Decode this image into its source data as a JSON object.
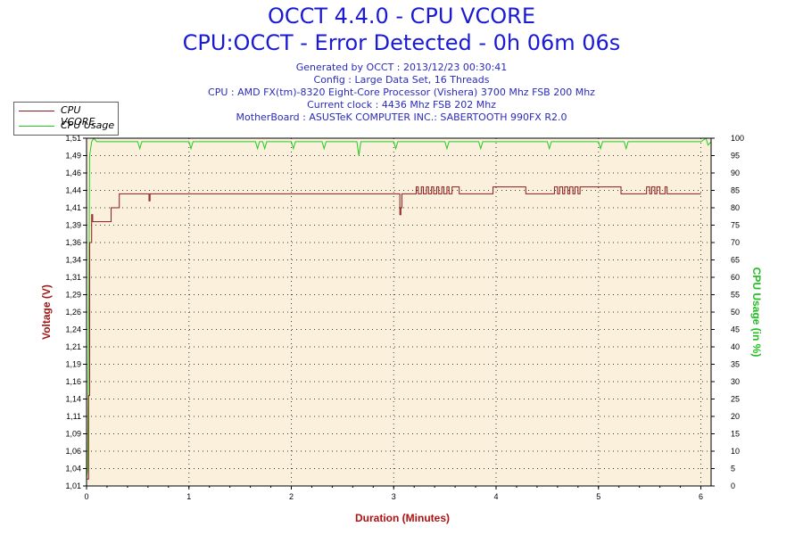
{
  "header": {
    "title": "OCCT 4.4.0 - CPU VCORE",
    "subtitle": "CPU:OCCT - Error Detected - 0h 06m 06s",
    "info_lines": [
      "Generated by OCCT : 2013/12/23 00:30:41",
      "Config : Large Data Set, 16 Threads",
      "CPU : AMD FX(tm)-8320 Eight-Core Processor (Vishera) 3700 Mhz FSB 200 Mhz",
      "Current clock : 4436 Mhz FSB 202 Mhz",
      "MotherBoard : ASUSTeK COMPUTER INC.: SABERTOOTH 990FX R2.0"
    ]
  },
  "legend": [
    {
      "label": "CPU VCORE",
      "color": "#8b1a1a"
    },
    {
      "label": "CPU Usage",
      "color": "#22cc22"
    }
  ],
  "colors": {
    "plot_bg": "#faf0dc",
    "grid": "#3a3a3a",
    "vcore": "#8b1a1a",
    "usage": "#22cc22",
    "axis_left": "#a01818",
    "axis_right": "#20c020",
    "xlabel": "#b01010"
  },
  "chart_data": {
    "type": "line",
    "xlabel": "Duration (Minutes)",
    "ylabel": "Voltage (V)",
    "y2label": "CPU Usage (in %)",
    "xlim": [
      0,
      6.1
    ],
    "ylim": [
      1.01,
      1.51
    ],
    "y2lim": [
      0,
      100
    ],
    "x_ticks": [
      "0",
      "1",
      "2",
      "3",
      "4",
      "5",
      "6"
    ],
    "y_ticks": [
      "1,01",
      "1,04",
      "1,06",
      "1,09",
      "1,11",
      "1,14",
      "1,16",
      "1,19",
      "1,21",
      "1,24",
      "1,26",
      "1,29",
      "1,31",
      "1,34",
      "1,36",
      "1,39",
      "1,41",
      "1,44",
      "1,46",
      "1,49",
      "1,51"
    ],
    "y2_ticks": [
      "0",
      "5",
      "10",
      "15",
      "20",
      "25",
      "30",
      "35",
      "40",
      "45",
      "50",
      "55",
      "60",
      "65",
      "70",
      "75",
      "80",
      "85",
      "90",
      "95",
      "100"
    ],
    "grid": true,
    "legend_position": "top-left",
    "series": [
      {
        "name": "CPU VCORE",
        "axis": "left",
        "x": [
          0,
          0.02,
          0.03,
          0.05,
          0.06,
          0.08,
          0.22,
          0.24,
          0.3,
          0.32,
          0.6,
          0.61,
          0.62,
          0.63,
          3.05,
          3.06,
          3.07,
          3.08,
          3.1,
          3.2,
          3.22,
          3.24,
          3.27,
          3.29,
          3.32,
          3.34,
          3.37,
          3.39,
          3.42,
          3.44,
          3.47,
          3.49,
          3.52,
          3.54,
          3.57,
          3.59,
          3.62,
          3.64,
          3.95,
          3.97,
          4.27,
          4.29,
          4.55,
          4.57,
          4.6,
          4.62,
          4.65,
          4.67,
          4.7,
          4.72,
          4.75,
          4.77,
          4.8,
          4.82,
          4.85,
          4.87,
          4.9,
          4.92,
          5.2,
          5.22,
          5.45,
          5.47,
          5.5,
          5.52,
          5.55,
          5.57,
          5.6,
          5.62,
          5.65,
          5.67,
          5.7,
          5.72,
          5.77,
          5.79,
          6.0
        ],
        "values": [
          1.02,
          1.14,
          1.36,
          1.4,
          1.39,
          1.39,
          1.39,
          1.41,
          1.41,
          1.43,
          1.43,
          1.42,
          1.43,
          1.43,
          1.43,
          1.4,
          1.41,
          1.43,
          1.43,
          1.43,
          1.44,
          1.43,
          1.44,
          1.43,
          1.44,
          1.43,
          1.44,
          1.43,
          1.44,
          1.43,
          1.44,
          1.43,
          1.44,
          1.43,
          1.44,
          1.44,
          1.44,
          1.43,
          1.43,
          1.44,
          1.44,
          1.43,
          1.43,
          1.44,
          1.43,
          1.44,
          1.43,
          1.44,
          1.43,
          1.44,
          1.43,
          1.44,
          1.43,
          1.44,
          1.44,
          1.44,
          1.44,
          1.44,
          1.44,
          1.43,
          1.43,
          1.44,
          1.43,
          1.44,
          1.43,
          1.44,
          1.43,
          1.43,
          1.44,
          1.43,
          1.43,
          1.43,
          1.43,
          1.43,
          1.43
        ]
      },
      {
        "name": "CPU Usage",
        "axis": "right",
        "x": [
          0,
          0.01,
          0.02,
          0.03,
          0.05,
          0.07,
          0.1,
          0.5,
          0.52,
          0.54,
          1.0,
          1.02,
          1.04,
          1.65,
          1.67,
          1.69,
          1.72,
          1.74,
          1.76,
          2.0,
          2.02,
          2.04,
          2.3,
          2.32,
          2.34,
          2.64,
          2.66,
          2.68,
          3.0,
          3.02,
          3.04,
          3.5,
          3.52,
          3.54,
          3.83,
          3.85,
          3.87,
          4.5,
          4.52,
          4.54,
          5.0,
          5.02,
          5.04,
          5.25,
          5.27,
          5.29,
          6.0,
          6.05,
          6.07,
          6.1
        ],
        "values": [
          2,
          5,
          40,
          95,
          99,
          100,
          99,
          99,
          97,
          99,
          99,
          97,
          99,
          99,
          97,
          99,
          99,
          97,
          99,
          99,
          97,
          99,
          99,
          97,
          99,
          99,
          95,
          99,
          99,
          97,
          99,
          99,
          97,
          99,
          99,
          97,
          99,
          99,
          97,
          99,
          99,
          97,
          99,
          99,
          97,
          99,
          99,
          100,
          98,
          99
        ]
      }
    ]
  }
}
